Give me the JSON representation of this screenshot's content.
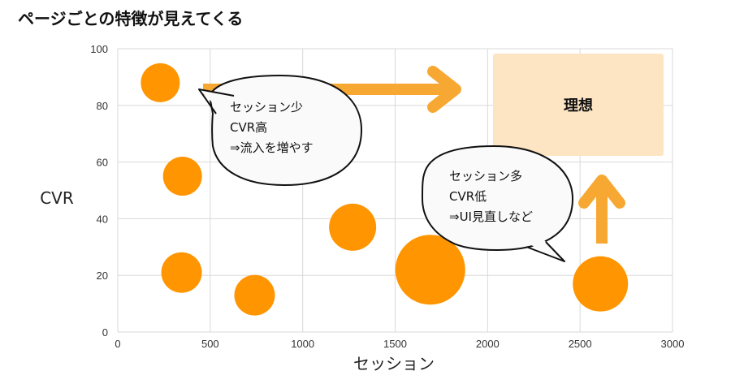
{
  "chart_data": {
    "type": "scatter",
    "title": "ページごとの特徴が見えてくる",
    "xlabel": "セッション",
    "ylabel": "CVR",
    "xlim": [
      0,
      3000
    ],
    "ylim": [
      0,
      100
    ],
    "x_ticks": [
      0,
      500,
      1000,
      1500,
      2000,
      2500,
      3000
    ],
    "y_ticks": [
      0,
      20,
      40,
      60,
      80,
      100
    ],
    "grid": true,
    "series": [
      {
        "color": "#FF9500",
        "points": [
          {
            "x": 230,
            "y": 88,
            "size": 24
          },
          {
            "x": 350,
            "y": 55,
            "size": 24
          },
          {
            "x": 345,
            "y": 21,
            "size": 25
          },
          {
            "x": 740,
            "y": 13,
            "size": 25
          },
          {
            "x": 1270,
            "y": 37,
            "size": 29
          },
          {
            "x": 1690,
            "y": 22,
            "size": 43
          },
          {
            "x": 2610,
            "y": 17,
            "size": 34
          }
        ]
      }
    ],
    "annotations": {
      "ideal_label": "理想",
      "callout_low_session": [
        "セッション少",
        "CVR高",
        "⇒流入を増やす"
      ],
      "callout_high_session": [
        "セッション多",
        "CVR低",
        "⇒UI見直しなど"
      ]
    },
    "colors": {
      "bubble": "#FF9500",
      "arrow": "#F7A832",
      "ideal_box": "#FDE4C3",
      "grid": "#D9D9D9"
    }
  }
}
